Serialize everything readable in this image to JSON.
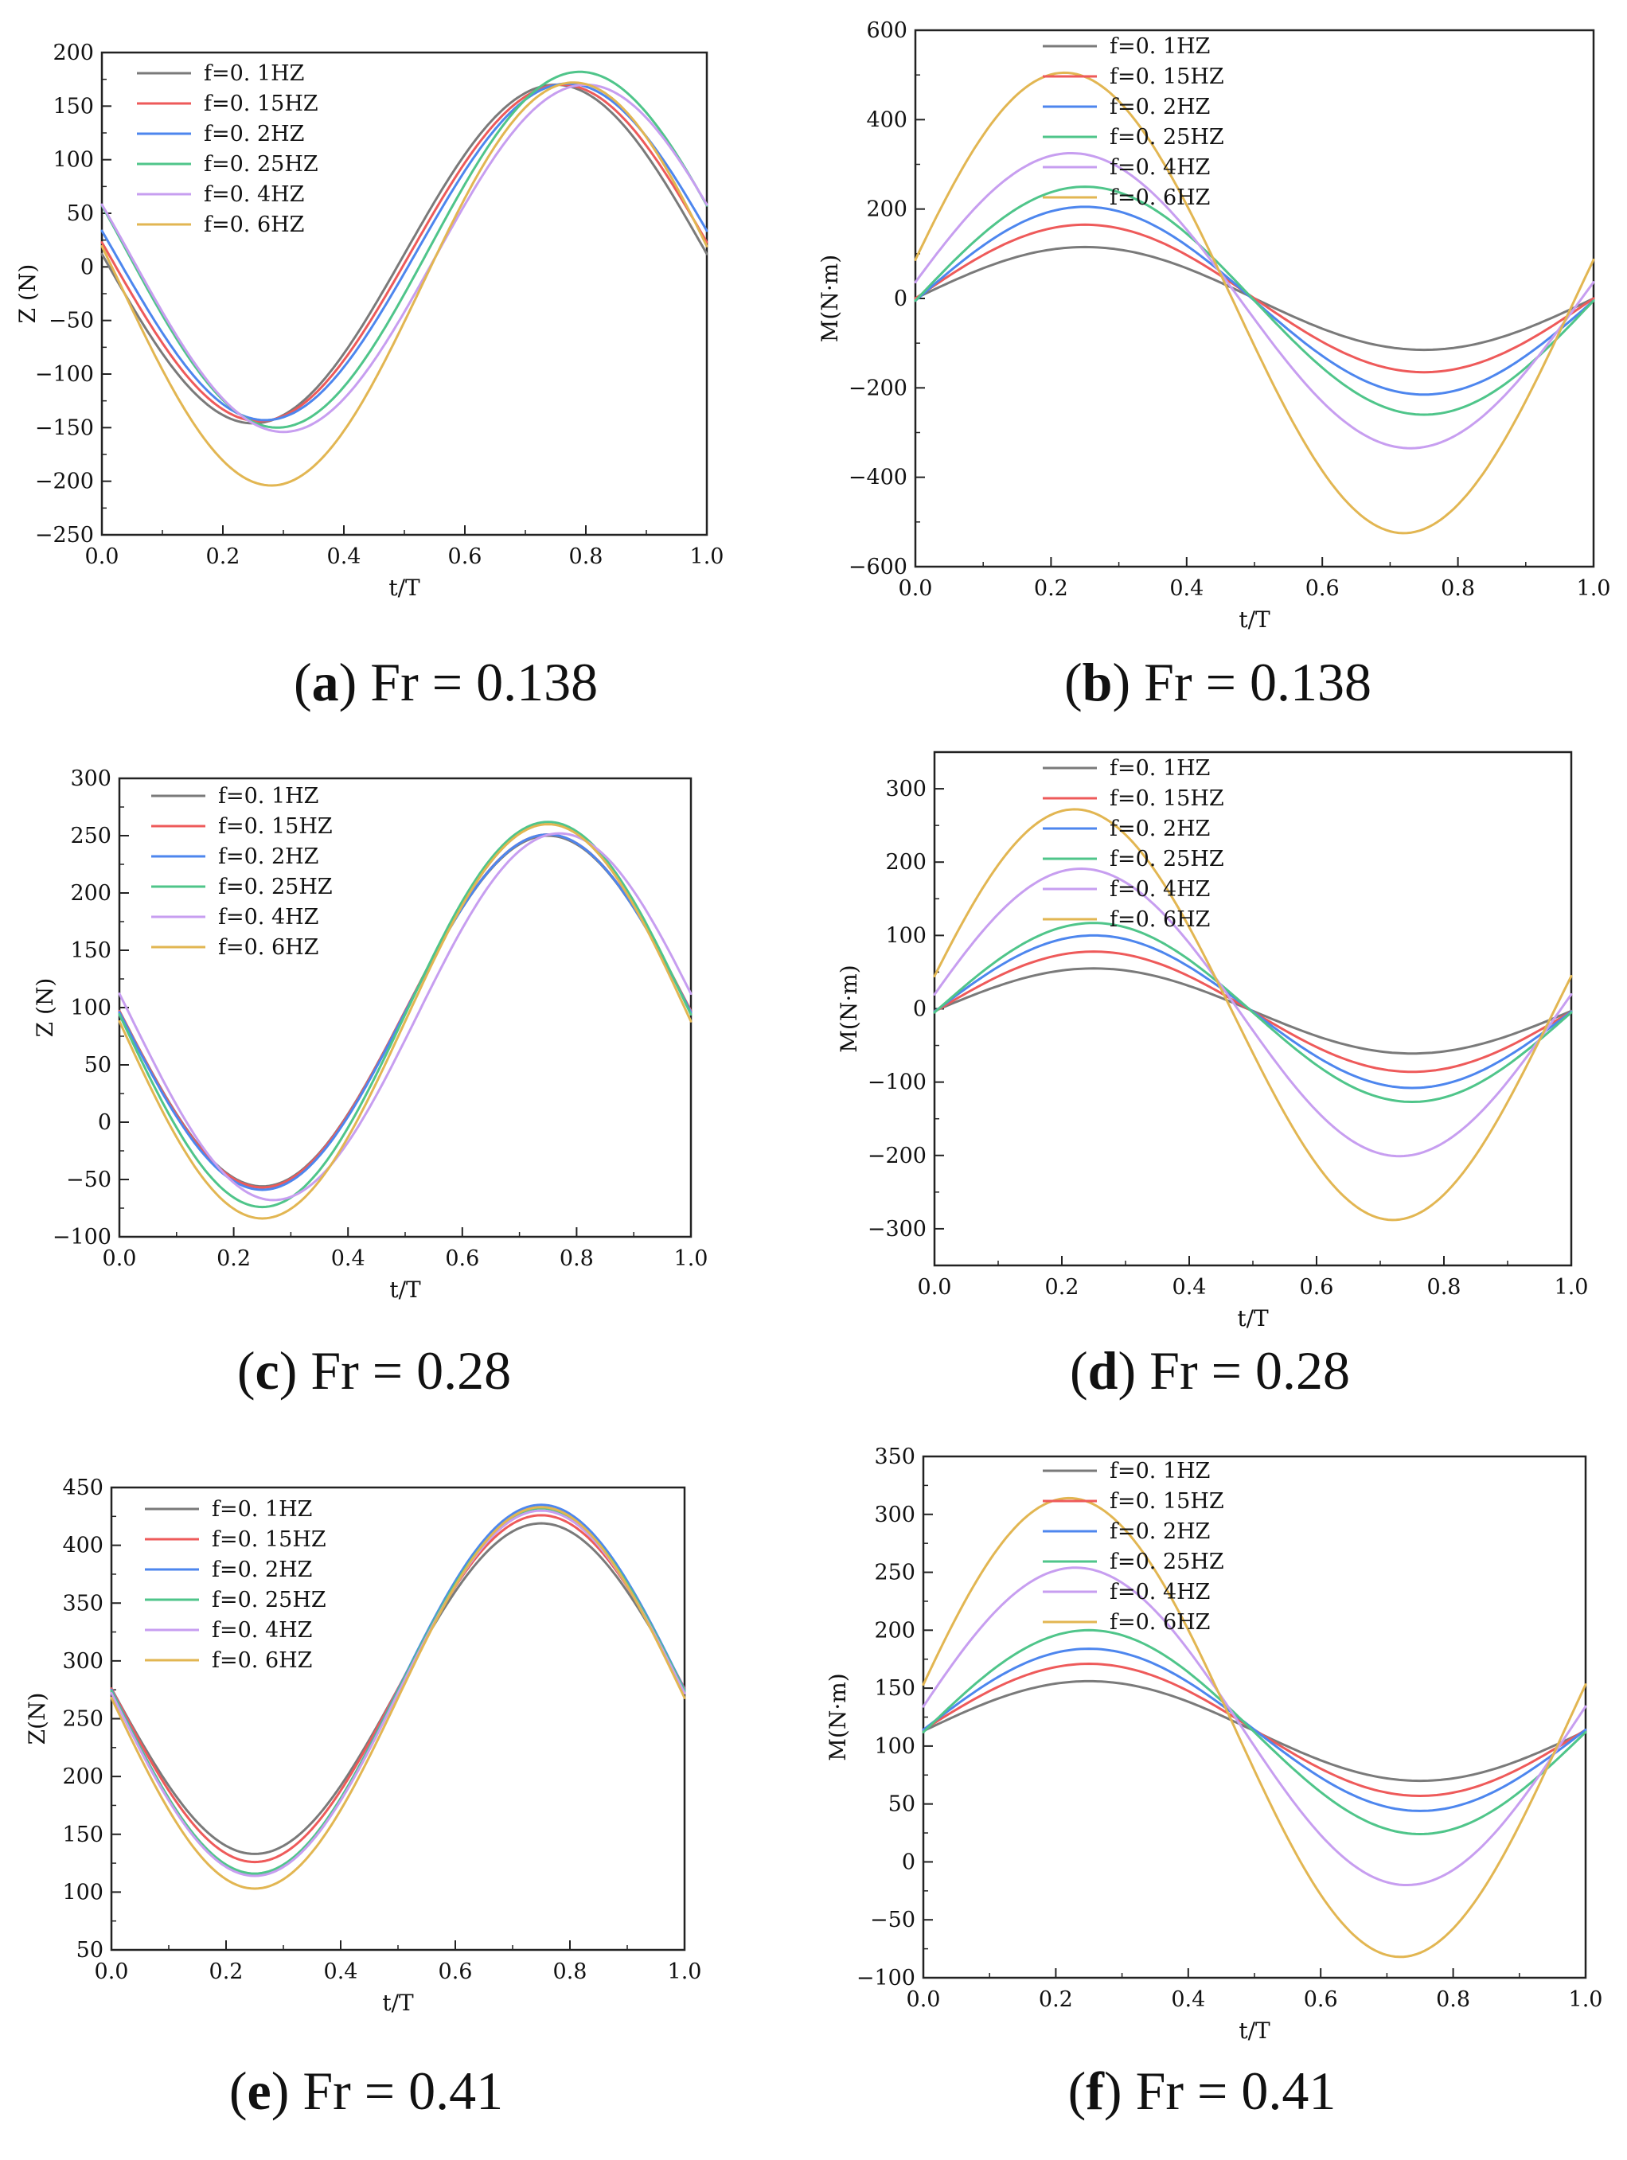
{
  "series_colors": [
    "#7a7a7a",
    "#ee5a5a",
    "#4d86ee",
    "#4fc58a",
    "#c79ef0",
    "#e2b652"
  ],
  "chart_data": [
    {
      "type": "line",
      "panel_label": "a",
      "caption": "Fr = 0.138",
      "xlabel": "t/T",
      "ylabel": "Z (N)",
      "xlim": [
        0,
        1
      ],
      "ylim": [
        -250,
        200
      ],
      "xticks": [
        "0.0",
        "0.2",
        "0.4",
        "0.6",
        "0.8",
        "1.0"
      ],
      "yticks": [
        "-250",
        "-200",
        "-150",
        "-100",
        "-50",
        "0",
        "50",
        "100",
        "150",
        "200"
      ],
      "series": [
        {
          "name": "f=0. 1HZ",
          "offset": 12,
          "amplitude": 158,
          "phase": 0.0,
          "harmonic": 0
        },
        {
          "name": "f=0. 15HZ",
          "offset": 13,
          "amplitude": 157,
          "phase": 0.01,
          "harmonic": 0
        },
        {
          "name": "f=0. 2HZ",
          "offset": 14,
          "amplitude": 157,
          "phase": 0.02,
          "harmonic": 0
        },
        {
          "name": "f=0. 25HZ",
          "offset": 16,
          "amplitude": 166,
          "phase": 0.04,
          "harmonic": 0
        },
        {
          "name": "f=0. 4HZ",
          "offset": 8,
          "amplitude": 162,
          "phase": 0.05,
          "harmonic": 0
        },
        {
          "name": "f=0. 6HZ",
          "offset": -16,
          "amplitude": 188,
          "phase": 0.03,
          "harmonic": 0
        }
      ]
    },
    {
      "type": "line",
      "panel_label": "b",
      "caption": "Fr = 0.138",
      "xlabel": "t/T",
      "ylabel": "M(N·m)",
      "xlim": [
        0,
        1
      ],
      "ylim": [
        -600,
        600
      ],
      "xticks": [
        "0.0",
        "0.2",
        "0.4",
        "0.6",
        "0.8",
        "1.0"
      ],
      "yticks": [
        "-600",
        "-400",
        "-200",
        "0",
        "200",
        "400",
        "600"
      ],
      "series": [
        {
          "name": "f=0. 1HZ",
          "offset": 0,
          "amplitude": -115,
          "phase": 0.0,
          "harmonic": 0
        },
        {
          "name": "f=0. 15HZ",
          "offset": 0,
          "amplitude": -165,
          "phase": 0.0,
          "harmonic": 0
        },
        {
          "name": "f=0. 2HZ",
          "offset": -5,
          "amplitude": -210,
          "phase": 0.0,
          "harmonic": 0
        },
        {
          "name": "f=0. 25HZ",
          "offset": -5,
          "amplitude": -255,
          "phase": 0.0,
          "harmonic": 0
        },
        {
          "name": "f=0. 4HZ",
          "offset": -5,
          "amplitude": -330,
          "phase": -0.02,
          "harmonic": 0
        },
        {
          "name": "f=0. 6HZ",
          "offset": -10,
          "amplitude": -515,
          "phase": -0.03,
          "harmonic": 0
        }
      ]
    },
    {
      "type": "line",
      "panel_label": "c",
      "caption": "Fr = 0.28",
      "xlabel": "t/T",
      "ylabel": "Z (N)",
      "xlim": [
        0,
        1
      ],
      "ylim": [
        -100,
        300
      ],
      "xticks": [
        "0.0",
        "0.2",
        "0.4",
        "0.6",
        "0.8",
        "1.0"
      ],
      "yticks": [
        "-100",
        "-50",
        "0",
        "50",
        "100",
        "150",
        "200",
        "250",
        "300"
      ],
      "series": [
        {
          "name": "f=0. 1HZ",
          "offset": 97,
          "amplitude": 153,
          "phase": 0.0,
          "harmonic": 0
        },
        {
          "name": "f=0. 15HZ",
          "offset": 97,
          "amplitude": 154,
          "phase": 0.0,
          "harmonic": 0
        },
        {
          "name": "f=0. 2HZ",
          "offset": 96,
          "amplitude": 155,
          "phase": 0.0,
          "harmonic": 0
        },
        {
          "name": "f=0. 25HZ",
          "offset": 94,
          "amplitude": 168,
          "phase": 0.0,
          "harmonic": 0
        },
        {
          "name": "f=0. 4HZ",
          "offset": 92,
          "amplitude": 160,
          "phase": 0.02,
          "harmonic": 0
        },
        {
          "name": "f=0. 6HZ",
          "offset": 88,
          "amplitude": 172,
          "phase": 0.0,
          "harmonic": 0
        }
      ]
    },
    {
      "type": "line",
      "panel_label": "d",
      "caption": "Fr = 0.28",
      "xlabel": "t/T",
      "ylabel": "M(N·m)",
      "xlim": [
        0,
        1
      ],
      "ylim": [
        -350,
        350
      ],
      "xticks": [
        "0.0",
        "0.2",
        "0.4",
        "0.6",
        "0.8",
        "1.0"
      ],
      "yticks": [
        "-300",
        "-200",
        "-100",
        "0",
        "100",
        "200",
        "300"
      ],
      "series": [
        {
          "name": "f=0. 1HZ",
          "offset": -3,
          "amplitude": -58,
          "phase": 0.0,
          "harmonic": 0
        },
        {
          "name": "f=0. 15HZ",
          "offset": -4,
          "amplitude": -82,
          "phase": 0.0,
          "harmonic": 0
        },
        {
          "name": "f=0. 2HZ",
          "offset": -4,
          "amplitude": -104,
          "phase": 0.0,
          "harmonic": 0
        },
        {
          "name": "f=0. 25HZ",
          "offset": -5,
          "amplitude": -122,
          "phase": 0.0,
          "harmonic": 0
        },
        {
          "name": "f=0. 4HZ",
          "offset": -5,
          "amplitude": -196,
          "phase": -0.02,
          "harmonic": 0
        },
        {
          "name": "f=0. 6HZ",
          "offset": -8,
          "amplitude": -280,
          "phase": -0.03,
          "harmonic": 0
        }
      ]
    },
    {
      "type": "line",
      "panel_label": "e",
      "caption": "Fr = 0.41",
      "xlabel": "t/T",
      "ylabel": "Z(N)",
      "xlim": [
        0,
        1
      ],
      "ylim": [
        50,
        450
      ],
      "xticks": [
        "0.0",
        "0.2",
        "0.4",
        "0.6",
        "0.8",
        "1.0"
      ],
      "yticks": [
        "50",
        "100",
        "150",
        "200",
        "250",
        "300",
        "350",
        "400",
        "450"
      ],
      "series": [
        {
          "name": "f=0. 1HZ",
          "offset": 276,
          "amplitude": 143,
          "phase": 0.0,
          "harmonic": 0
        },
        {
          "name": "f=0. 15HZ",
          "offset": 276,
          "amplitude": 150,
          "phase": 0.0,
          "harmonic": 0
        },
        {
          "name": "f=0. 2HZ",
          "offset": 275,
          "amplitude": 160,
          "phase": 0.0,
          "harmonic": 0
        },
        {
          "name": "f=0. 25HZ",
          "offset": 274,
          "amplitude": 158,
          "phase": 0.0,
          "harmonic": 0
        },
        {
          "name": "f=0. 4HZ",
          "offset": 272,
          "amplitude": 158,
          "phase": 0.0,
          "harmonic": 0
        },
        {
          "name": "f=0. 6HZ",
          "offset": 268,
          "amplitude": 165,
          "phase": 0.0,
          "harmonic": 0
        }
      ]
    },
    {
      "type": "line",
      "panel_label": "f",
      "caption": "Fr = 0.41",
      "xlabel": "t/T",
      "ylabel": "M(N·m)",
      "xlim": [
        0,
        1
      ],
      "ylim": [
        -100,
        350
      ],
      "xticks": [
        "0.0",
        "0.2",
        "0.4",
        "0.6",
        "0.8",
        "1.0"
      ],
      "yticks": [
        "-100",
        "-50",
        "0",
        "50",
        "100",
        "150",
        "200",
        "250",
        "300",
        "350"
      ],
      "series": [
        {
          "name": "f=0. 1HZ",
          "offset": 113,
          "amplitude": -43,
          "phase": 0.0,
          "harmonic": 0
        },
        {
          "name": "f=0. 15HZ",
          "offset": 114,
          "amplitude": -57,
          "phase": 0.0,
          "harmonic": 0
        },
        {
          "name": "f=0. 2HZ",
          "offset": 114,
          "amplitude": -70,
          "phase": 0.0,
          "harmonic": 0
        },
        {
          "name": "f=0. 25HZ",
          "offset": 112,
          "amplitude": -88,
          "phase": 0.0,
          "harmonic": 0
        },
        {
          "name": "f=0. 4HZ",
          "offset": 117,
          "amplitude": -137,
          "phase": -0.02,
          "harmonic": 0
        },
        {
          "name": "f=0. 6HZ",
          "offset": 116,
          "amplitude": -198,
          "phase": -0.03,
          "harmonic": 0
        }
      ]
    }
  ]
}
